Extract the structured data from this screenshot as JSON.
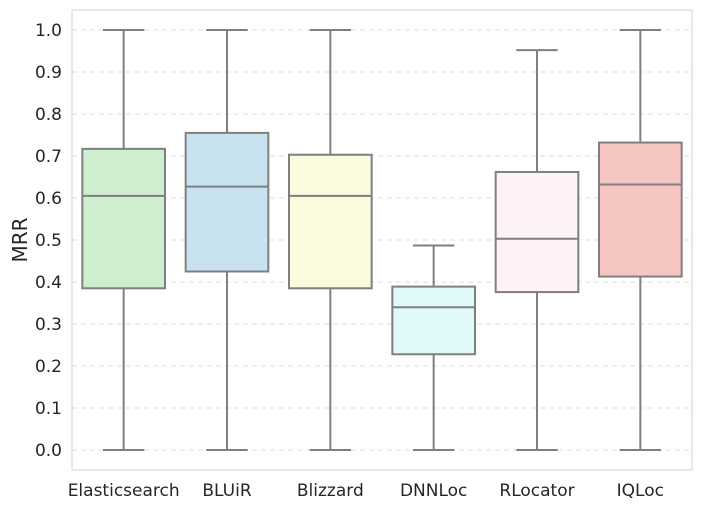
{
  "chart_data": {
    "type": "box",
    "title": "",
    "xlabel": "",
    "ylabel": "MRR",
    "ylim": [
      -0.05,
      1.05
    ],
    "yticks": [
      "0.0",
      "0.1",
      "0.2",
      "0.3",
      "0.4",
      "0.5",
      "0.6",
      "0.7",
      "0.8",
      "0.9",
      "1.0"
    ],
    "grid": "horizontal dashed",
    "legend": "none",
    "categories": [
      "Elasticsearch",
      "BLUiR",
      "Blizzard",
      "DNNLoc",
      "RLocator",
      "IQLoc"
    ],
    "boxes": [
      {
        "whisker_low": 0.0,
        "q1": 0.385,
        "median": 0.605,
        "q3": 0.717,
        "whisker_high": 1.0,
        "color": "#cfeed0"
      },
      {
        "whisker_low": 0.0,
        "q1": 0.425,
        "median": 0.627,
        "q3": 0.755,
        "whisker_high": 1.0,
        "color": "#c8e2ef"
      },
      {
        "whisker_low": 0.0,
        "q1": 0.385,
        "median": 0.605,
        "q3": 0.703,
        "whisker_high": 1.0,
        "color": "#fafadf"
      },
      {
        "whisker_low": 0.0,
        "q1": 0.228,
        "median": 0.34,
        "q3": 0.389,
        "whisker_high": 0.487,
        "color": "#e0fafa"
      },
      {
        "whisker_low": 0.0,
        "q1": 0.376,
        "median": 0.503,
        "q3": 0.662,
        "whisker_high": 0.952,
        "color": "#fff2f5"
      },
      {
        "whisker_low": 0.0,
        "q1": 0.413,
        "median": 0.632,
        "q3": 0.732,
        "whisker_high": 1.0,
        "color": "#f5c5c2"
      }
    ],
    "line_color": "#7f7f7f",
    "grid_color": "#dddddd",
    "frame_color": "#d0d0d0"
  }
}
